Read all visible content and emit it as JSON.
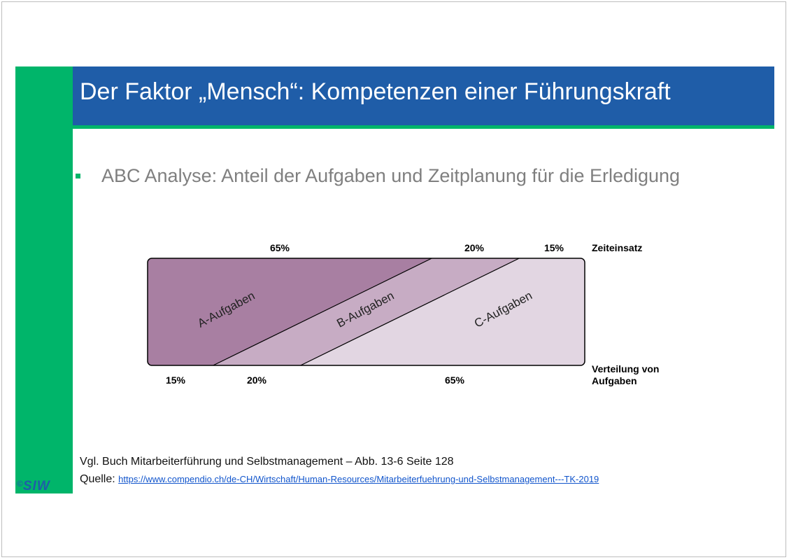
{
  "slide": {
    "title": "Der Faktor „Mensch“: Kompetenzen einer Führungskraft",
    "bullet": "ABC Analyse: Anteil der Aufgaben und Zeitplanung für die Erledigung",
    "reference": "Vgl. Buch Mitarbeiterführung und Selbstmanagement – Abb. 13-6 Seite 128",
    "source_label": "Quelle:",
    "source_url": "https://www.compendio.ch/de-CH/Wirtschaft/Human-Resources/Mitarbeiterfuehrung-und-Selbstmanagement---TK-2019",
    "logo_copyright": "©",
    "logo_text": "SIW"
  },
  "diagram": {
    "segments": [
      "A-Aufgaben",
      "B-Aufgaben",
      "C-Aufgaben"
    ],
    "colors": [
      "#a87fa2",
      "#c7acc4",
      "#e2d6e2"
    ],
    "top_axis_label": "Zeiteinsatz",
    "bottom_axis_label_line1": "Verteilung von",
    "bottom_axis_label_line2": "Aufgaben",
    "zeiteinsatz": [
      65,
      20,
      15
    ],
    "verteilung": [
      15,
      20,
      65
    ],
    "zeiteinsatz_labels": [
      "65%",
      "20%",
      "15%"
    ],
    "verteilung_labels": [
      "15%",
      "20%",
      "65%"
    ]
  }
}
